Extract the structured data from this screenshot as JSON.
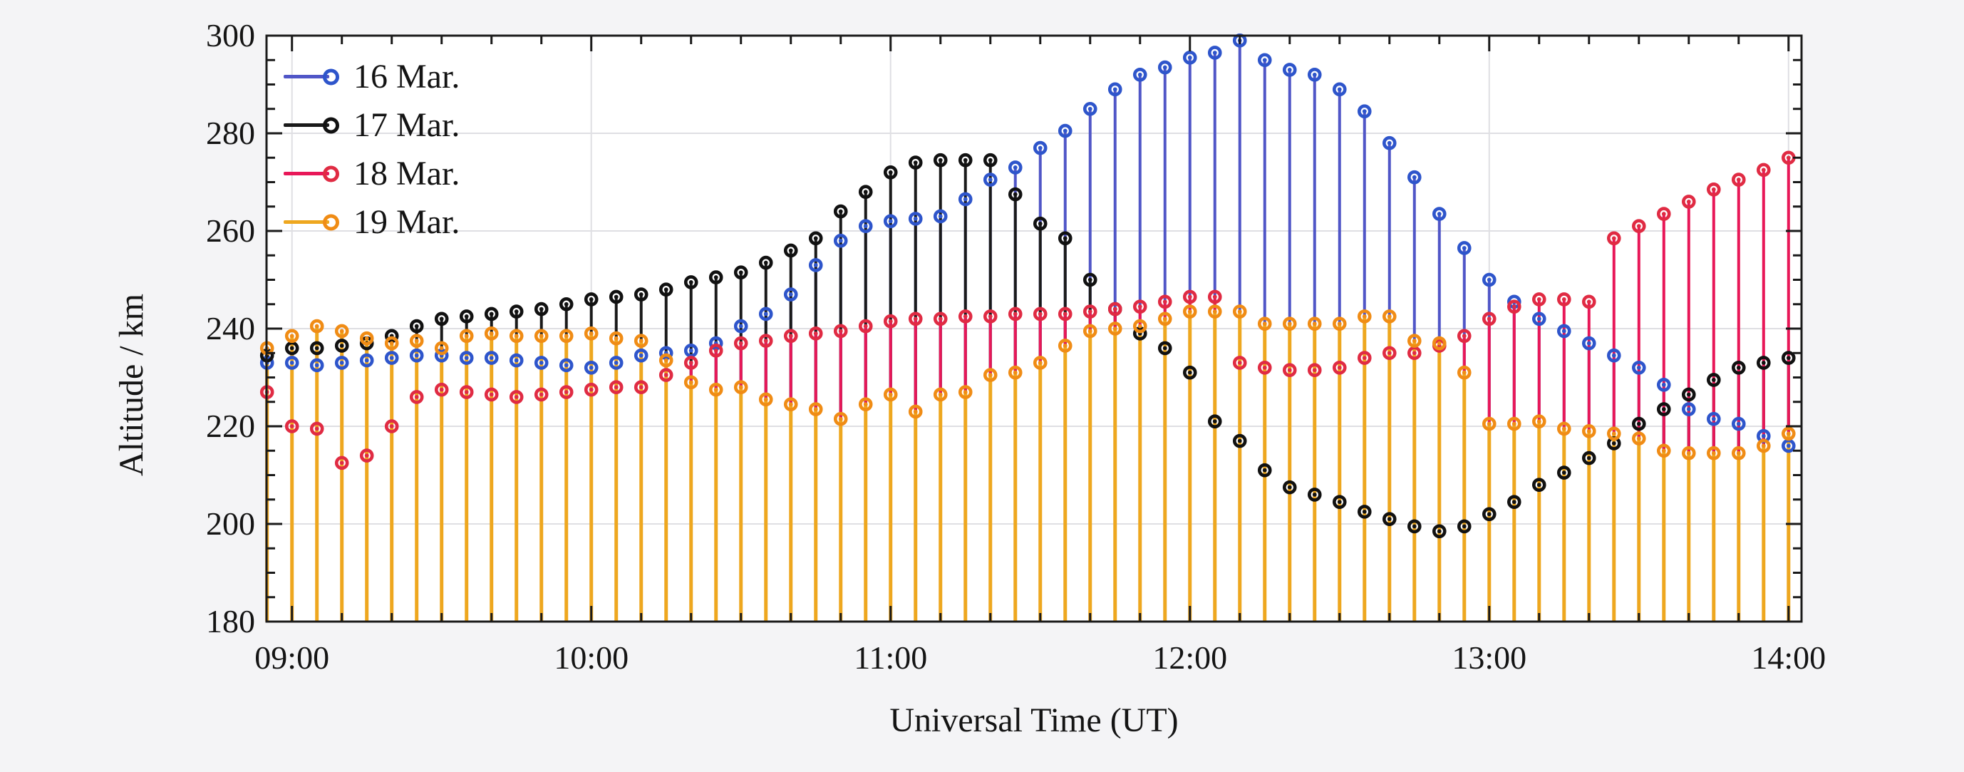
{
  "figure": {
    "background": "#f4f4f6",
    "plot_background": "#ffffff",
    "grid_color": "#dfdfe3",
    "axis_color": "#1a1a1a",
    "text_color": "#141414"
  },
  "chart_data": {
    "type": "stem",
    "title": "",
    "xlabel": "Universal Time (UT)",
    "ylabel": "Altitude / km",
    "grid": true,
    "legend_position": "upper left",
    "ylim": [
      180,
      300
    ],
    "y_ticks": [
      180,
      200,
      220,
      240,
      260,
      280,
      300
    ],
    "y_minor_step": 5,
    "xlim_minutes": [
      534.9,
      842.6
    ],
    "x_tick_minutes": [
      540,
      600,
      660,
      720,
      780,
      840
    ],
    "x_tick_labels": [
      "09:00",
      "10:00",
      "11:00",
      "12:00",
      "13:00",
      "14:00"
    ],
    "x_minor_step_minutes": 10,
    "x_start_minute": 535,
    "x_step_minutes": 5,
    "x_count": 62,
    "baseline_value": 180,
    "series": [
      {
        "name": "16 Mar.",
        "stem_color": "#5056c7",
        "marker_color": "#2e55cb",
        "values": [
          233,
          233,
          232.5,
          233,
          233.5,
          234,
          234.5,
          234.5,
          234,
          234,
          233.5,
          233,
          232.5,
          232,
          233,
          234.5,
          235,
          235.5,
          237,
          240.5,
          243,
          247,
          253,
          258,
          261,
          262,
          262.5,
          263,
          266.5,
          270.5,
          273,
          277,
          280.5,
          285,
          289,
          292,
          293.5,
          295.5,
          296.5,
          299,
          295,
          293,
          292,
          289,
          284.5,
          278,
          271,
          263.5,
          256.5,
          250,
          245.5,
          242,
          239.5,
          237,
          234.5,
          232,
          228.5,
          223.5,
          221.5,
          220.5,
          218,
          216
        ]
      },
      {
        "name": "17 Mar.",
        "stem_color": "#1a1a1a",
        "marker_color": "#111111",
        "values": [
          234.5,
          236,
          236,
          236.5,
          237,
          238.5,
          240.5,
          242,
          242.5,
          243,
          243.5,
          244,
          245,
          246,
          246.5,
          247,
          248,
          249.5,
          250.5,
          251.5,
          253.5,
          256,
          258.5,
          264,
          268,
          272,
          274,
          274.5,
          274.5,
          274.5,
          267.5,
          261.5,
          258.5,
          250,
          244,
          239,
          236,
          231,
          221,
          217,
          211,
          207.5,
          206,
          204.5,
          202.5,
          201,
          199.5,
          198.5,
          199.5,
          202,
          204.5,
          208,
          210.5,
          213.5,
          216.5,
          220.5,
          223.5,
          226.5,
          229.5,
          232,
          233,
          234
        ]
      },
      {
        "name": "18 Mar.",
        "stem_color": "#e81758",
        "marker_color": "#e02b43",
        "values": [
          227,
          220,
          219.5,
          212.5,
          214,
          220,
          226,
          227.5,
          227,
          226.5,
          226,
          226.5,
          227,
          227.5,
          228,
          228,
          230.5,
          233,
          235.5,
          237,
          237.5,
          238.5,
          239,
          239.5,
          240.5,
          241.5,
          242,
          242,
          242.5,
          242.5,
          243,
          243,
          243,
          243.5,
          244,
          244.5,
          245.5,
          246.5,
          246.5,
          233,
          232,
          231.5,
          231.5,
          232,
          234,
          235,
          235,
          236.5,
          238.5,
          242,
          244.5,
          246,
          246,
          245.5,
          258.5,
          261,
          263.5,
          266,
          268.5,
          270.5,
          272.5,
          275
        ]
      },
      {
        "name": "19 Mar.",
        "stem_color": "#eea71f",
        "marker_color": "#f08c15",
        "values": [
          236,
          238.5,
          240.5,
          239.5,
          238,
          237,
          237.5,
          236,
          238.5,
          239,
          238.5,
          238.5,
          238.5,
          239,
          238,
          237.5,
          233.5,
          229,
          227.5,
          228,
          225.5,
          224.5,
          223.5,
          221.5,
          224.5,
          226.5,
          223,
          226.5,
          227,
          230.5,
          231,
          233,
          236.5,
          239.5,
          240,
          240.5,
          242,
          243.5,
          243.5,
          243.5,
          241,
          241,
          241,
          241,
          242.5,
          242.5,
          237.5,
          237,
          231,
          220.5,
          220.5,
          221,
          219.5,
          219,
          218.5,
          217.5,
          215,
          214.5,
          214.5,
          214.5,
          216,
          218.5
        ]
      }
    ]
  }
}
